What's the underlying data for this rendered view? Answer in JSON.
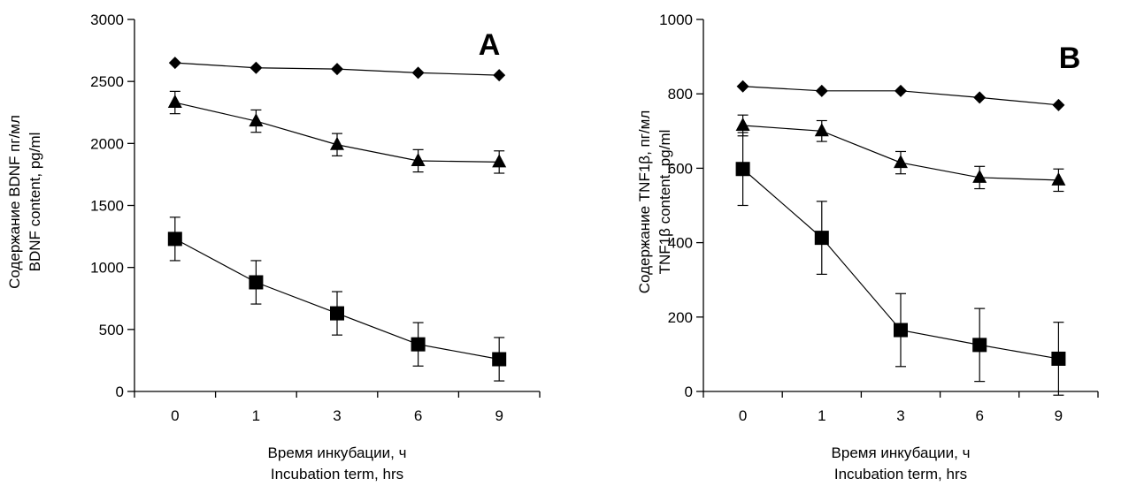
{
  "chart_data": [
    {
      "type": "line",
      "panel_label": "A",
      "categories": [
        "0",
        "1",
        "3",
        "6",
        "9"
      ],
      "xlabel": [
        "Время инкубации, ч",
        "Incubation term, hrs"
      ],
      "ylabel": [
        "Содержание BDNF пг/мл",
        "BDNF content,  pg/ml"
      ],
      "ylim": [
        0,
        3000
      ],
      "yticks": [
        "0",
        "500",
        "1000",
        "1500",
        "2000",
        "2500",
        "3000"
      ],
      "grid": false,
      "series": [
        {
          "marker": "diamond",
          "values": [
            2650,
            2610,
            2600,
            2570,
            2550
          ],
          "errors": [
            0,
            0,
            0,
            0,
            0
          ]
        },
        {
          "marker": "triangle",
          "values": [
            2330,
            2180,
            1990,
            1860,
            1850
          ],
          "errors": [
            90,
            90,
            90,
            90,
            90
          ]
        },
        {
          "marker": "square",
          "values": [
            1230,
            880,
            630,
            380,
            260
          ],
          "errors": [
            175,
            175,
            175,
            175,
            175
          ]
        }
      ]
    },
    {
      "type": "line",
      "panel_label": "B",
      "categories": [
        "0",
        "1",
        "3",
        "6",
        "9"
      ],
      "xlabel": [
        "Время инкубации, ч",
        "Incubation term, hrs"
      ],
      "ylabel": [
        "Содержание TNF1β, пг/мл",
        "TNF1β content,  pg/ml"
      ],
      "ylim": [
        0,
        1000
      ],
      "yticks": [
        "0",
        "200",
        "400",
        "600",
        "800",
        "1000"
      ],
      "grid": false,
      "series": [
        {
          "marker": "diamond",
          "values": [
            820,
            808,
            808,
            790,
            770
          ],
          "errors": [
            0,
            0,
            0,
            0,
            0
          ]
        },
        {
          "marker": "triangle",
          "values": [
            715,
            700,
            615,
            575,
            568
          ],
          "errors": [
            28,
            28,
            30,
            30,
            30
          ]
        },
        {
          "marker": "square",
          "values": [
            598,
            413,
            165,
            125,
            88
          ],
          "errors": [
            98,
            98,
            98,
            98,
            98
          ]
        }
      ]
    }
  ]
}
